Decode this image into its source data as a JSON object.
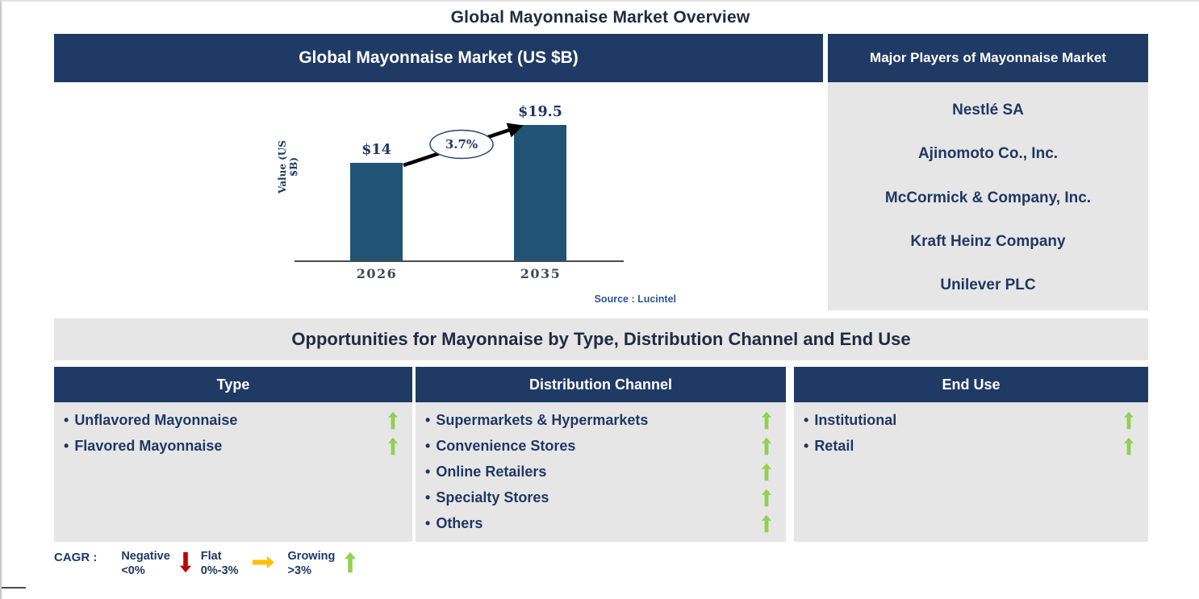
{
  "page": {
    "title": "Global Mayonnaise Market Overview"
  },
  "chart_panel": {
    "header": "Global Mayonnaise Market (US $B)"
  },
  "chart_data": {
    "type": "bar",
    "title": "Global Mayonnaise Market (US $B)",
    "categories": [
      "2026",
      "2035"
    ],
    "values": [
      14,
      19.5
    ],
    "value_labels": [
      "$14",
      "$19.5"
    ],
    "ylabel": "Value (US $B)",
    "xlabel": "",
    "cagr_label": "3.7%",
    "bar_color": "#215377",
    "grid": false,
    "legend_position": "none",
    "source": "Source : Lucintel"
  },
  "major_players": {
    "header": "Major Players of Mayonnaise Market",
    "companies": [
      "Nestlé SA",
      "Ajinomoto Co., Inc.",
      "McCormick & Company, Inc.",
      "Kraft Heinz Company",
      "Unilever PLC"
    ]
  },
  "opportunities": {
    "title": "Opportunities for Mayonnaise by Type, Distribution Channel and End Use",
    "columns": [
      {
        "header": "Type",
        "items": [
          {
            "label": "Unflavored Mayonnaise",
            "trend": "growing"
          },
          {
            "label": "Flavored Mayonnaise",
            "trend": "growing"
          }
        ]
      },
      {
        "header": "Distribution Channel",
        "items": [
          {
            "label": "Supermarkets & Hypermarkets",
            "trend": "growing"
          },
          {
            "label": "Convenience Stores",
            "trend": "growing"
          },
          {
            "label": "Online Retailers",
            "trend": "growing"
          },
          {
            "label": "Specialty Stores",
            "trend": "growing"
          },
          {
            "label": "Others",
            "trend": "growing"
          }
        ]
      },
      {
        "header": "End Use",
        "items": [
          {
            "label": "Institutional",
            "trend": "growing"
          },
          {
            "label": "Retail",
            "trend": "growing"
          }
        ]
      }
    ]
  },
  "legend": {
    "label": "CAGR :",
    "items": [
      {
        "name": "Negative",
        "range": "<0%",
        "direction": "down",
        "color": "#C00000"
      },
      {
        "name": "Flat",
        "range": "0%-3%",
        "direction": "right",
        "color": "#FFC000"
      },
      {
        "name": "Growing",
        "range": ">3%",
        "direction": "up",
        "color": "#92D050"
      }
    ]
  },
  "colors": {
    "header_navy": "#203A66",
    "panel_gray": "#E7E6E6",
    "bar_blue": "#215377",
    "text_navy": "#1F3864",
    "title_dark": "#212B42",
    "source_blue": "#2E5496"
  }
}
